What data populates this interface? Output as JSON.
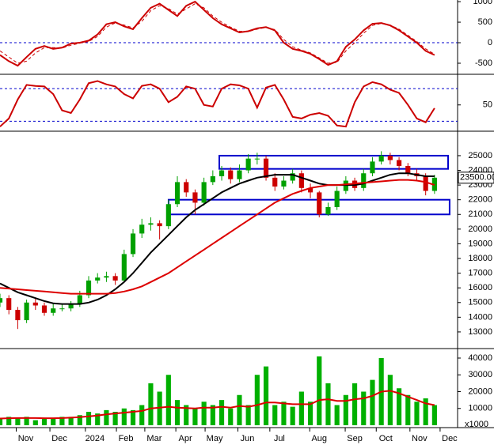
{
  "chart_data": [
    {
      "type": "line",
      "xlim": [
        0,
        51.6
      ],
      "ylim": [
        -750,
        1040
      ],
      "yticks": [
        -500,
        0,
        500,
        1000
      ],
      "ref_lines": [
        0
      ],
      "x": [
        0,
        1,
        2,
        3,
        4,
        5,
        6,
        7,
        8,
        9,
        10,
        11,
        12,
        13,
        14,
        15,
        16,
        17,
        18,
        19,
        20,
        21,
        22,
        23,
        24,
        25,
        26,
        27,
        28,
        29,
        30,
        31,
        32,
        33,
        34,
        35,
        36,
        37,
        38,
        39,
        40,
        41,
        42,
        43,
        44,
        45,
        46,
        47,
        48,
        49
      ],
      "series": [
        {
          "color": "#cc0000",
          "style": "solid",
          "values": [
            -300,
            -450,
            -560,
            -350,
            -150,
            -80,
            -150,
            -120,
            -20,
            0,
            50,
            200,
            450,
            500,
            400,
            330,
            600,
            850,
            950,
            800,
            650,
            900,
            1000,
            800,
            600,
            450,
            350,
            250,
            280,
            350,
            380,
            300,
            0,
            -150,
            -200,
            -270,
            -400,
            -540,
            -450,
            -100,
            80,
            300,
            460,
            480,
            420,
            300,
            150,
            0,
            -200,
            -300
          ]
        },
        {
          "color": "#cc0000",
          "style": "dashed",
          "values": [
            -200,
            -350,
            -500,
            -450,
            -250,
            -120,
            -120,
            -130,
            -60,
            -10,
            30,
            150,
            380,
            480,
            430,
            360,
            520,
            780,
            900,
            830,
            700,
            820,
            950,
            850,
            650,
            500,
            380,
            280,
            270,
            330,
            370,
            320,
            80,
            -100,
            -180,
            -250,
            -370,
            -500,
            -480,
            -200,
            0,
            230,
            420,
            470,
            430,
            330,
            180,
            30,
            -150,
            -280
          ]
        }
      ]
    },
    {
      "type": "line",
      "xlim": [
        0,
        51.6
      ],
      "ylim": [
        3,
        105
      ],
      "yticks": [
        50
      ],
      "ref_lines": [
        20,
        80
      ],
      "x": [
        0,
        1,
        2,
        3,
        4,
        5,
        6,
        7,
        8,
        9,
        10,
        11,
        12,
        13,
        14,
        15,
        16,
        17,
        18,
        19,
        20,
        21,
        22,
        23,
        24,
        25,
        26,
        27,
        28,
        29,
        30,
        31,
        32,
        33,
        34,
        35,
        36,
        37,
        38,
        39,
        40,
        41,
        42,
        43,
        44,
        45,
        46,
        47,
        48,
        49
      ],
      "series": [
        {
          "color": "#cc0000",
          "style": "solid",
          "values": [
            10,
            25,
            60,
            87,
            85,
            84,
            70,
            40,
            35,
            60,
            90,
            94,
            88,
            84,
            70,
            62,
            85,
            88,
            80,
            55,
            65,
            84,
            80,
            50,
            47,
            80,
            88,
            86,
            80,
            45,
            82,
            87,
            60,
            28,
            25,
            32,
            35,
            30,
            12,
            10,
            55,
            84,
            92,
            88,
            78,
            72,
            50,
            25,
            18,
            44
          ]
        }
      ]
    },
    {
      "type": "candlestick",
      "xlim": [
        0,
        51.6
      ],
      "ylim": [
        11920,
        26450
      ],
      "yticks": [
        13000,
        14000,
        15000,
        16000,
        17000,
        18000,
        19000,
        20000,
        21000,
        22000,
        23000,
        24000,
        25000
      ],
      "up_color": "#00a000",
      "down_color": "#cc0000",
      "x": [
        0,
        1,
        2,
        3,
        4,
        5,
        6,
        7,
        8,
        9,
        10,
        11,
        12,
        13,
        14,
        15,
        16,
        17,
        18,
        19,
        20,
        21,
        22,
        23,
        24,
        25,
        26,
        27,
        28,
        29,
        30,
        31,
        32,
        33,
        34,
        35,
        36,
        37,
        38,
        39,
        40,
        41,
        42,
        43,
        44,
        45,
        46,
        47,
        48,
        49
      ],
      "open": [
        15000,
        15300,
        14500,
        13800,
        15000,
        14800,
        14300,
        14600,
        14600,
        14900,
        15500,
        16500,
        16700,
        16800,
        16500,
        18300,
        19700,
        20300,
        20400,
        20200,
        21700,
        23200,
        22500,
        21800,
        23200,
        23600,
        24000,
        23400,
        24000,
        24800,
        24800,
        23500,
        22900,
        23300,
        23800,
        22800,
        22500,
        21000,
        21500,
        22600,
        23300,
        22800,
        23800,
        24600,
        25000,
        24700,
        24300,
        23800,
        23600,
        22600
      ],
      "high": [
        15600,
        15500,
        14700,
        15200,
        15300,
        15000,
        14900,
        14900,
        15100,
        15800,
        16800,
        17000,
        17100,
        17000,
        18600,
        20000,
        20700,
        20800,
        20600,
        22000,
        23600,
        23400,
        22700,
        23500,
        24000,
        24300,
        24200,
        24400,
        25100,
        25200,
        25000,
        23800,
        23600,
        24100,
        24000,
        23100,
        22600,
        21800,
        22900,
        23600,
        23500,
        24100,
        24900,
        25300,
        25200,
        24900,
        24500,
        24100,
        23800,
        23700
      ],
      "low": [
        14700,
        14200,
        13200,
        13600,
        14500,
        14100,
        14100,
        14400,
        14400,
        14700,
        15300,
        16300,
        16400,
        16200,
        16400,
        18100,
        19400,
        19900,
        19300,
        20000,
        21500,
        22200,
        21000,
        21600,
        23000,
        23300,
        23100,
        23200,
        23800,
        24400,
        23300,
        22600,
        22700,
        23100,
        22500,
        22100,
        20800,
        20900,
        21300,
        22400,
        22600,
        22600,
        23600,
        24400,
        24400,
        24000,
        23600,
        23300,
        22300,
        22400
      ],
      "close": [
        15300,
        14500,
        13800,
        15000,
        14800,
        14300,
        14600,
        14600,
        14900,
        15500,
        16500,
        16700,
        16800,
        16500,
        18300,
        19700,
        20300,
        20400,
        20200,
        21700,
        23200,
        22500,
        21800,
        23200,
        23600,
        24000,
        23400,
        24000,
        24800,
        24800,
        23500,
        22900,
        23300,
        23800,
        22800,
        22500,
        21000,
        21500,
        22600,
        23300,
        22800,
        23800,
        24600,
        25000,
        24700,
        24300,
        23800,
        23600,
        22600,
        23500
      ],
      "series": [
        {
          "color": "#000000",
          "style": "solid",
          "values": [
            16300,
            16000,
            15700,
            15500,
            15300,
            15100,
            14950,
            14900,
            14900,
            14900,
            15000,
            15200,
            15500,
            15900,
            16400,
            17000,
            17700,
            18400,
            19000,
            19600,
            20200,
            20800,
            21300,
            21700,
            22100,
            22500,
            22800,
            23100,
            23300,
            23500,
            23600,
            23700,
            23700,
            23700,
            23500,
            23300,
            23100,
            23000,
            23000,
            23000,
            23000,
            23100,
            23300,
            23500,
            23700,
            23800,
            23800,
            23700,
            23600,
            23600
          ]
        },
        {
          "color": "#dd0000",
          "style": "solid",
          "values": [
            16000,
            15950,
            15900,
            15850,
            15800,
            15750,
            15700,
            15650,
            15600,
            15600,
            15600,
            15600,
            15600,
            15650,
            15750,
            15900,
            16100,
            16400,
            16700,
            17000,
            17400,
            17800,
            18200,
            18600,
            19000,
            19400,
            19800,
            20200,
            20600,
            21000,
            21400,
            21800,
            22100,
            22400,
            22600,
            22800,
            22900,
            23000,
            23000,
            23050,
            23100,
            23150,
            23200,
            23250,
            23300,
            23350,
            23350,
            23300,
            23200,
            23000
          ]
        }
      ],
      "boxes": [
        {
          "x": [
            24.73,
            50.53
          ],
          "y": [
            24100,
            25000
          ],
          "color": "#0000cc"
        },
        {
          "x": [
            19.01,
            50.7
          ],
          "y": [
            21000,
            22000
          ],
          "color": "#0000cc"
        }
      ],
      "last_price": {
        "value": 23500,
        "label": "23500.00"
      }
    },
    {
      "type": "bar",
      "xlim": [
        0,
        51.6
      ],
      "ylim": [
        -940,
        43760
      ],
      "yticks": [
        10000,
        20000,
        30000,
        40000
      ],
      "color": "#00b000",
      "unit_label": "x1000",
      "x": [
        0,
        1,
        2,
        3,
        4,
        5,
        6,
        7,
        8,
        9,
        10,
        11,
        12,
        13,
        14,
        15,
        16,
        17,
        18,
        19,
        20,
        21,
        22,
        23,
        24,
        25,
        26,
        27,
        28,
        29,
        30,
        31,
        32,
        33,
        34,
        35,
        36,
        37,
        38,
        39,
        40,
        41,
        42,
        43,
        44,
        45,
        46,
        47,
        48,
        49
      ],
      "values": [
        4000,
        5000,
        4000,
        5000,
        3000,
        4000,
        4000,
        5000,
        5000,
        6000,
        8000,
        7000,
        9000,
        8000,
        10000,
        9000,
        12000,
        25000,
        20000,
        30000,
        15000,
        12000,
        10000,
        14000,
        12000,
        15000,
        10000,
        18000,
        12000,
        30000,
        35000,
        12000,
        14000,
        11000,
        20000,
        14000,
        41000,
        25000,
        12000,
        18000,
        25000,
        20000,
        27000,
        40000,
        30000,
        22000,
        18000,
        14000,
        16000,
        12000
      ],
      "series": [
        {
          "color": "#dd0000",
          "style": "solid",
          "values": [
            4000,
            4200,
            4300,
            4300,
            4300,
            4200,
            4200,
            4300,
            4500,
            4800,
            5300,
            5800,
            6500,
            7000,
            7500,
            8000,
            8500,
            10000,
            10500,
            11000,
            10500,
            10200,
            10000,
            10500,
            10500,
            11000,
            10500,
            11500,
            11000,
            12000,
            13500,
            13500,
            13000,
            12500,
            12500,
            12500,
            15000,
            15500,
            14500,
            14500,
            15500,
            16000,
            17500,
            20000,
            20500,
            19000,
            17000,
            15000,
            13000,
            12000
          ]
        }
      ],
      "xticks": [
        {
          "value": 2.9,
          "label": "Nov"
        },
        {
          "value": 6.7,
          "label": "Dec"
        },
        {
          "value": 10.7,
          "label": "2024"
        },
        {
          "value": 14.2,
          "label": "Feb"
        },
        {
          "value": 17.4,
          "label": "Mar"
        },
        {
          "value": 20.9,
          "label": "Apr"
        },
        {
          "value": 24.2,
          "label": "May"
        },
        {
          "value": 27.9,
          "label": "Jun"
        },
        {
          "value": 31.5,
          "label": "Jul"
        },
        {
          "value": 36,
          "label": "Aug"
        },
        {
          "value": 40,
          "label": "Sep"
        },
        {
          "value": 43.5,
          "label": "Oct"
        },
        {
          "value": 47.3,
          "label": "Nov"
        },
        {
          "value": 50.7,
          "label": "Dec"
        }
      ]
    }
  ]
}
